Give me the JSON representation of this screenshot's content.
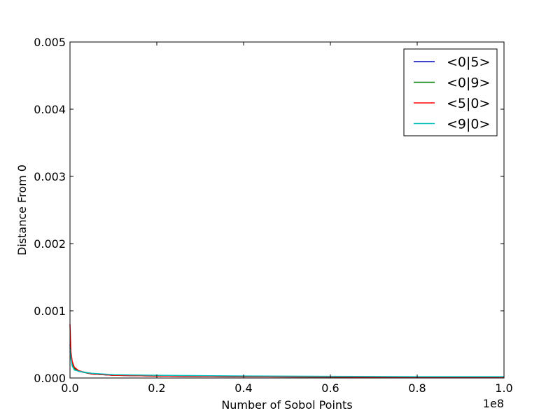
{
  "chart_data": {
    "type": "line",
    "title": "",
    "xlabel": "Number of Sobol Points",
    "ylabel": "Distance From 0",
    "x_offset_label": "1e8",
    "xlim": [
      0.0,
      1.0
    ],
    "ylim": [
      0.0,
      0.005
    ],
    "x_ticks": [
      "0.0",
      "0.2",
      "0.4",
      "0.6",
      "0.8",
      "1.0"
    ],
    "y_ticks": [
      "0.000",
      "0.001",
      "0.002",
      "0.003",
      "0.004",
      "0.005"
    ],
    "x_tick_values": [
      0.0,
      0.2,
      0.4,
      0.6,
      0.8,
      1.0
    ],
    "y_tick_values": [
      0.0,
      0.001,
      0.002,
      0.003,
      0.004,
      0.005
    ],
    "grid": false,
    "legend_position": "top-right",
    "series": [
      {
        "name": "<0|5>",
        "color": "#0000bf",
        "x": [
          0.0,
          0.002,
          0.005,
          0.01,
          0.02,
          0.05,
          0.1,
          0.2,
          0.4,
          0.6,
          0.8,
          1.0
        ],
        "y": [
          0.0005,
          0.00035,
          0.00022,
          0.00015,
          0.0001,
          6e-05,
          4e-05,
          3e-05,
          2e-05,
          1.5e-05,
          1e-05,
          1e-05
        ]
      },
      {
        "name": "<0|9>",
        "color": "#008000",
        "x": [
          0.0,
          0.002,
          0.005,
          0.01,
          0.02,
          0.05,
          0.1,
          0.2,
          0.4,
          0.6,
          0.8,
          1.0
        ],
        "y": [
          0.0004,
          0.0003,
          0.0002,
          0.00014,
          0.0001,
          6e-05,
          4e-05,
          3e-05,
          2e-05,
          1.5e-05,
          1e-05,
          1e-05
        ]
      },
      {
        "name": "<5|0>",
        "color": "#ff0000",
        "x": [
          0.0,
          0.002,
          0.005,
          0.01,
          0.02,
          0.05,
          0.1,
          0.2,
          0.4,
          0.6,
          0.8,
          1.0
        ],
        "y": [
          0.0008,
          0.0004,
          0.00025,
          0.00016,
          0.00011,
          6e-05,
          4e-05,
          3e-05,
          2e-05,
          1.5e-05,
          1e-05,
          1e-05
        ]
      },
      {
        "name": "<9|0>",
        "color": "#00bfbf",
        "x": [
          0.0,
          0.002,
          0.005,
          0.01,
          0.02,
          0.05,
          0.1,
          0.2,
          0.4,
          0.6,
          0.8,
          1.0
        ],
        "y": [
          0.00045,
          0.0003,
          0.00018,
          0.00012,
          0.0001,
          7e-05,
          5e-05,
          4e-05,
          3e-05,
          2.5e-05,
          2e-05,
          2e-05
        ]
      }
    ]
  }
}
